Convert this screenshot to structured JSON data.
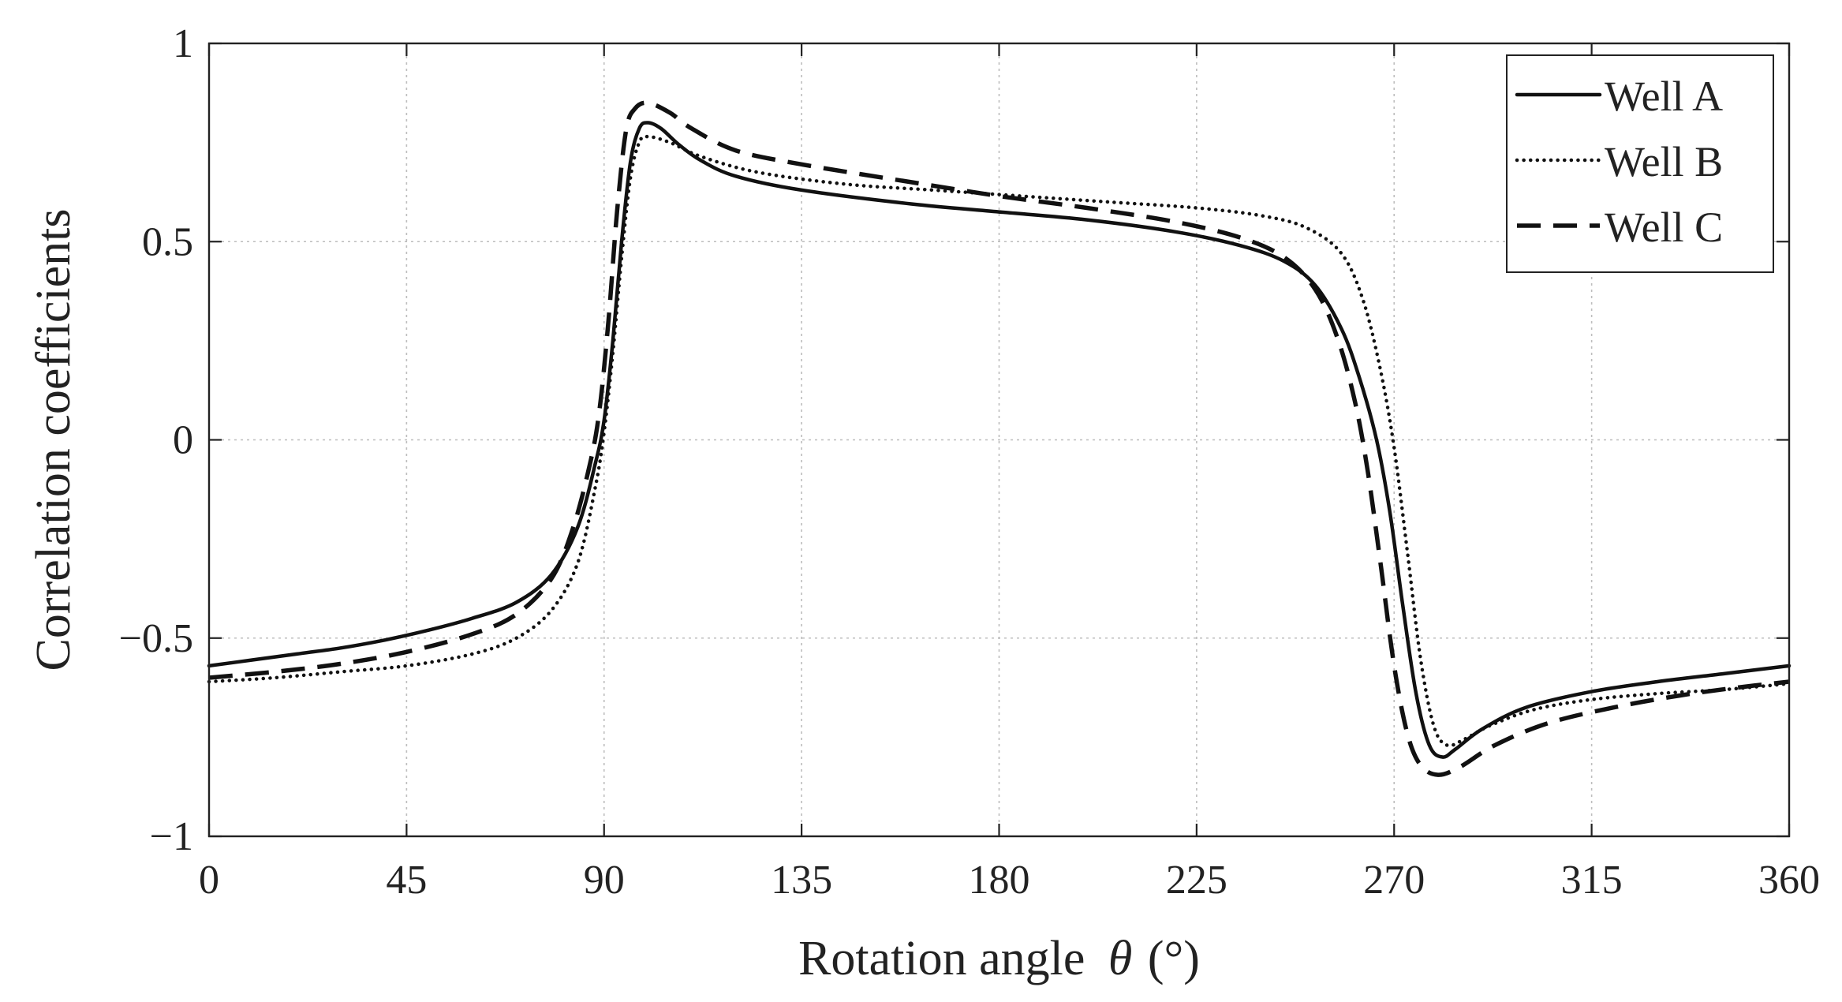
{
  "chart_data": {
    "type": "line",
    "title": "",
    "xlabel": "Rotation angle",
    "xlabel_symbol": "θ",
    "xlabel_unit": "(°)",
    "ylabel": "Correlation coefficients",
    "xlim": [
      0,
      360
    ],
    "ylim": [
      -1,
      1
    ],
    "xticks": [
      0,
      45,
      90,
      135,
      180,
      225,
      270,
      315,
      360
    ],
    "yticks": [
      -1,
      -0.5,
      0,
      0.5,
      1
    ],
    "ytick_labels": [
      "−1",
      "−0.5",
      "0",
      "0.5",
      "1"
    ],
    "grid": true,
    "legend_position": "top-right",
    "series": [
      {
        "name": "Well A",
        "style": "solid",
        "points": [
          [
            0,
            -0.57
          ],
          [
            10,
            -0.555
          ],
          [
            20,
            -0.54
          ],
          [
            30,
            -0.525
          ],
          [
            40,
            -0.505
          ],
          [
            50,
            -0.48
          ],
          [
            60,
            -0.45
          ],
          [
            70,
            -0.41
          ],
          [
            78,
            -0.34
          ],
          [
            84,
            -0.22
          ],
          [
            88,
            -0.06
          ],
          [
            90,
            0.05
          ],
          [
            92,
            0.25
          ],
          [
            94,
            0.5
          ],
          [
            96,
            0.7
          ],
          [
            98,
            0.785
          ],
          [
            100,
            0.8
          ],
          [
            103,
            0.785
          ],
          [
            107,
            0.745
          ],
          [
            112,
            0.705
          ],
          [
            120,
            0.665
          ],
          [
            135,
            0.63
          ],
          [
            160,
            0.595
          ],
          [
            180,
            0.575
          ],
          [
            200,
            0.555
          ],
          [
            220,
            0.525
          ],
          [
            235,
            0.49
          ],
          [
            245,
            0.45
          ],
          [
            252,
            0.39
          ],
          [
            258,
            0.28
          ],
          [
            262,
            0.16
          ],
          [
            266,
            0.0
          ],
          [
            269,
            -0.18
          ],
          [
            272,
            -0.42
          ],
          [
            275,
            -0.64
          ],
          [
            278,
            -0.77
          ],
          [
            281,
            -0.8
          ],
          [
            284,
            -0.78
          ],
          [
            290,
            -0.73
          ],
          [
            300,
            -0.675
          ],
          [
            315,
            -0.635
          ],
          [
            330,
            -0.61
          ],
          [
            345,
            -0.59
          ],
          [
            360,
            -0.57
          ]
        ]
      },
      {
        "name": "Well B",
        "style": "dotted",
        "points": [
          [
            0,
            -0.61
          ],
          [
            15,
            -0.6
          ],
          [
            30,
            -0.585
          ],
          [
            45,
            -0.57
          ],
          [
            60,
            -0.54
          ],
          [
            70,
            -0.5
          ],
          [
            78,
            -0.43
          ],
          [
            84,
            -0.31
          ],
          [
            88,
            -0.12
          ],
          [
            90,
            0.02
          ],
          [
            92,
            0.22
          ],
          [
            94,
            0.46
          ],
          [
            96,
            0.66
          ],
          [
            98,
            0.75
          ],
          [
            100,
            0.765
          ],
          [
            105,
            0.75
          ],
          [
            112,
            0.715
          ],
          [
            125,
            0.675
          ],
          [
            145,
            0.645
          ],
          [
            165,
            0.63
          ],
          [
            185,
            0.615
          ],
          [
            205,
            0.6
          ],
          [
            225,
            0.585
          ],
          [
            240,
            0.565
          ],
          [
            250,
            0.535
          ],
          [
            258,
            0.47
          ],
          [
            263,
            0.35
          ],
          [
            267,
            0.17
          ],
          [
            270,
            -0.02
          ],
          [
            273,
            -0.28
          ],
          [
            276,
            -0.55
          ],
          [
            279,
            -0.72
          ],
          [
            282,
            -0.77
          ],
          [
            286,
            -0.755
          ],
          [
            292,
            -0.72
          ],
          [
            302,
            -0.68
          ],
          [
            315,
            -0.655
          ],
          [
            330,
            -0.64
          ],
          [
            345,
            -0.63
          ],
          [
            360,
            -0.615
          ]
        ]
      },
      {
        "name": "Well C",
        "style": "dashed",
        "points": [
          [
            0,
            -0.6
          ],
          [
            15,
            -0.585
          ],
          [
            30,
            -0.565
          ],
          [
            45,
            -0.535
          ],
          [
            60,
            -0.49
          ],
          [
            70,
            -0.44
          ],
          [
            78,
            -0.35
          ],
          [
            83,
            -0.22
          ],
          [
            87,
            -0.05
          ],
          [
            89,
            0.08
          ],
          [
            91,
            0.3
          ],
          [
            93,
            0.58
          ],
          [
            95,
            0.78
          ],
          [
            97,
            0.835
          ],
          [
            100,
            0.85
          ],
          [
            105,
            0.825
          ],
          [
            110,
            0.785
          ],
          [
            120,
            0.73
          ],
          [
            135,
            0.695
          ],
          [
            160,
            0.65
          ],
          [
            180,
            0.615
          ],
          [
            200,
            0.585
          ],
          [
            220,
            0.55
          ],
          [
            235,
            0.51
          ],
          [
            245,
            0.46
          ],
          [
            252,
            0.38
          ],
          [
            257,
            0.26
          ],
          [
            261,
            0.1
          ],
          [
            264,
            -0.08
          ],
          [
            267,
            -0.32
          ],
          [
            270,
            -0.57
          ],
          [
            273,
            -0.74
          ],
          [
            276,
            -0.82
          ],
          [
            280,
            -0.845
          ],
          [
            285,
            -0.825
          ],
          [
            293,
            -0.77
          ],
          [
            305,
            -0.715
          ],
          [
            320,
            -0.675
          ],
          [
            335,
            -0.645
          ],
          [
            348,
            -0.625
          ],
          [
            360,
            -0.61
          ]
        ]
      }
    ]
  }
}
